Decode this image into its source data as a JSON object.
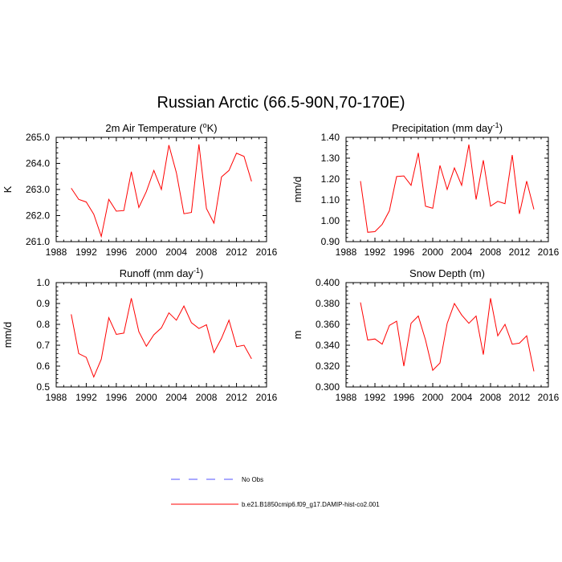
{
  "figure_title": "Russian Arctic (66.5-90N,70-170E)",
  "legend": [
    {
      "label": "No Obs",
      "color": "#5050ff",
      "dash": true
    },
    {
      "label": "b.e21.B1850cmip6.f09_g17.DAMIP-hist-co2.001",
      "color": "#ff0000",
      "dash": false
    }
  ],
  "chart_data": [
    {
      "type": "line",
      "title": "2m Air Temperature (",
      "title_super": "o",
      "title_tail": "K)",
      "ylabel": "K",
      "xlim": [
        1988,
        2016
      ],
      "ylim": [
        261.0,
        265.0
      ],
      "xticks": [
        1988,
        1992,
        1996,
        2000,
        2004,
        2008,
        2012,
        2016
      ],
      "yticks": [
        "261.0",
        "262.0",
        "263.0",
        "264.0",
        "265.0"
      ],
      "series": [
        {
          "color": "#ff0000",
          "x": [
            1990,
            1991,
            1992,
            1993,
            1994,
            1995,
            1996,
            1997,
            1998,
            1999,
            2000,
            2001,
            2002,
            2003,
            2004,
            2005,
            2006,
            2007,
            2008,
            2009,
            2010,
            2011,
            2012,
            2013,
            2014
          ],
          "y": [
            263.05,
            262.62,
            262.52,
            262.05,
            261.2,
            262.62,
            262.17,
            262.19,
            263.68,
            262.31,
            262.92,
            263.73,
            263.0,
            264.7,
            263.64,
            262.07,
            262.12,
            264.73,
            262.27,
            261.71,
            263.48,
            263.73,
            264.39,
            264.27,
            263.31
          ]
        }
      ]
    },
    {
      "type": "line",
      "title": "Precipitation (mm day",
      "title_super": "-1",
      "title_tail": ")",
      "ylabel": "mm/d",
      "xlim": [
        1988,
        2016
      ],
      "ylim": [
        0.9,
        1.4
      ],
      "xticks": [
        1988,
        1992,
        1996,
        2000,
        2004,
        2008,
        2012,
        2016
      ],
      "yticks": [
        "0.90",
        "1.00",
        "1.10",
        "1.20",
        "1.30",
        "1.40"
      ],
      "series": [
        {
          "color": "#ff0000",
          "x": [
            1990,
            1991,
            1992,
            1993,
            1994,
            1995,
            1996,
            1997,
            1998,
            1999,
            2000,
            2001,
            2002,
            2003,
            2004,
            2005,
            2006,
            2007,
            2008,
            2009,
            2010,
            2011,
            2012,
            2013,
            2014
          ],
          "y": [
            1.19,
            0.945,
            0.948,
            0.983,
            1.048,
            1.212,
            1.215,
            1.17,
            1.325,
            1.07,
            1.06,
            1.265,
            1.15,
            1.253,
            1.17,
            1.365,
            1.102,
            1.29,
            1.07,
            1.093,
            1.082,
            1.315,
            1.033,
            1.19,
            1.055
          ]
        }
      ]
    },
    {
      "type": "line",
      "title": "Runoff (mm day",
      "title_super": "-1",
      "title_tail": ")",
      "ylabel": "mm/d",
      "xlim": [
        1988,
        2016
      ],
      "ylim": [
        0.5,
        1.0
      ],
      "xticks": [
        1988,
        1992,
        1996,
        2000,
        2004,
        2008,
        2012,
        2016
      ],
      "yticks": [
        "0.5",
        "0.6",
        "0.7",
        "0.8",
        "0.9",
        "1.0"
      ],
      "series": [
        {
          "color": "#ff0000",
          "x": [
            1990,
            1991,
            1992,
            1993,
            1994,
            1995,
            1996,
            1997,
            1998,
            1999,
            2000,
            2001,
            2002,
            2003,
            2004,
            2005,
            2006,
            2007,
            2008,
            2009,
            2010,
            2011,
            2012,
            2013,
            2014
          ],
          "y": [
            0.848,
            0.66,
            0.642,
            0.548,
            0.633,
            0.832,
            0.752,
            0.758,
            0.925,
            0.765,
            0.695,
            0.75,
            0.783,
            0.855,
            0.82,
            0.888,
            0.808,
            0.78,
            0.798,
            0.665,
            0.733,
            0.82,
            0.693,
            0.7,
            0.635
          ]
        }
      ]
    },
    {
      "type": "line",
      "title": "Snow Depth (m)",
      "title_super": "",
      "title_tail": "",
      "ylabel": "m",
      "xlim": [
        1988,
        2016
      ],
      "ylim": [
        0.3,
        0.4
      ],
      "xticks": [
        1988,
        1992,
        1996,
        2000,
        2004,
        2008,
        2012,
        2016
      ],
      "yticks": [
        "0.300",
        "0.320",
        "0.340",
        "0.360",
        "0.380",
        "0.400"
      ],
      "series": [
        {
          "color": "#ff0000",
          "x": [
            1990,
            1991,
            1992,
            1993,
            1994,
            1995,
            1996,
            1997,
            1998,
            1999,
            2000,
            2001,
            2002,
            2003,
            2004,
            2005,
            2006,
            2007,
            2008,
            2009,
            2010,
            2011,
            2012,
            2013,
            2014
          ],
          "y": [
            0.381,
            0.345,
            0.346,
            0.341,
            0.359,
            0.363,
            0.32,
            0.361,
            0.368,
            0.345,
            0.316,
            0.323,
            0.361,
            0.38,
            0.369,
            0.361,
            0.368,
            0.331,
            0.385,
            0.349,
            0.36,
            0.341,
            0.342,
            0.349,
            0.315
          ]
        }
      ]
    }
  ]
}
